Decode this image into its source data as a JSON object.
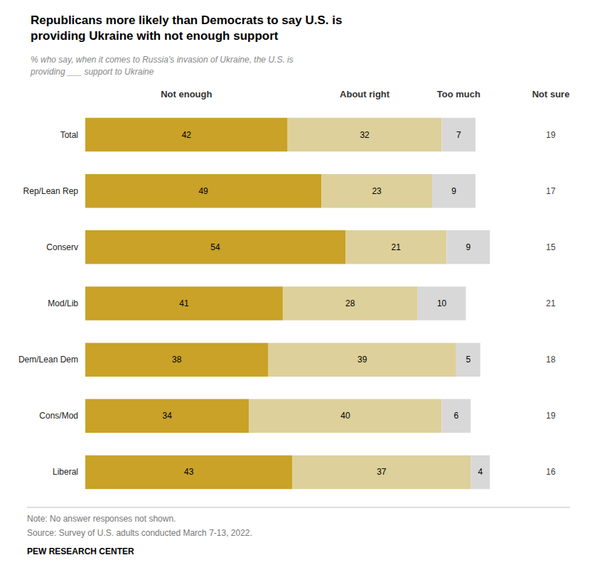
{
  "chart_data": {
    "type": "bar",
    "orientation": "horizontal",
    "stacked": true,
    "data_labels": true,
    "grid": false,
    "tick_labels": "y",
    "title": "Republicans more likely than Democrats to say U.S. is\nproviding Ukraine with not enough support",
    "subtitle": "% who say, when it comes to Russia’s invasion of Ukraine, the U.S. is\nproviding ___ support to Ukraine",
    "categories": [
      "Total",
      "Rep/Lean Rep",
      "Conserv",
      "Mod/Lib",
      "Dem/Lean Dem",
      "Cons/Mod",
      "Liberal"
    ],
    "xlim": [
      0,
      90
    ],
    "series": [
      {
        "name": "Not enough",
        "type": "bar",
        "color": "#C9A227",
        "values": [
          42,
          49,
          54,
          41,
          38,
          34,
          43
        ]
      },
      {
        "name": "About right",
        "type": "bar",
        "color": "#DDD09A",
        "values": [
          32,
          23,
          21,
          28,
          39,
          40,
          37
        ]
      },
      {
        "name": "Too much",
        "type": "bar",
        "color": "#D8D8D8",
        "values": [
          7,
          9,
          9,
          10,
          5,
          6,
          4
        ]
      },
      {
        "name": "Not sure",
        "type": "text",
        "values": [
          19,
          17,
          15,
          21,
          18,
          19,
          16
        ]
      }
    ],
    "annotations": [
      "Note: No answer responses not shown.",
      "Source: Survey of U.S. adults conducted March 7-13, 2022.",
      "PEW RESEARCH CENTER"
    ]
  }
}
